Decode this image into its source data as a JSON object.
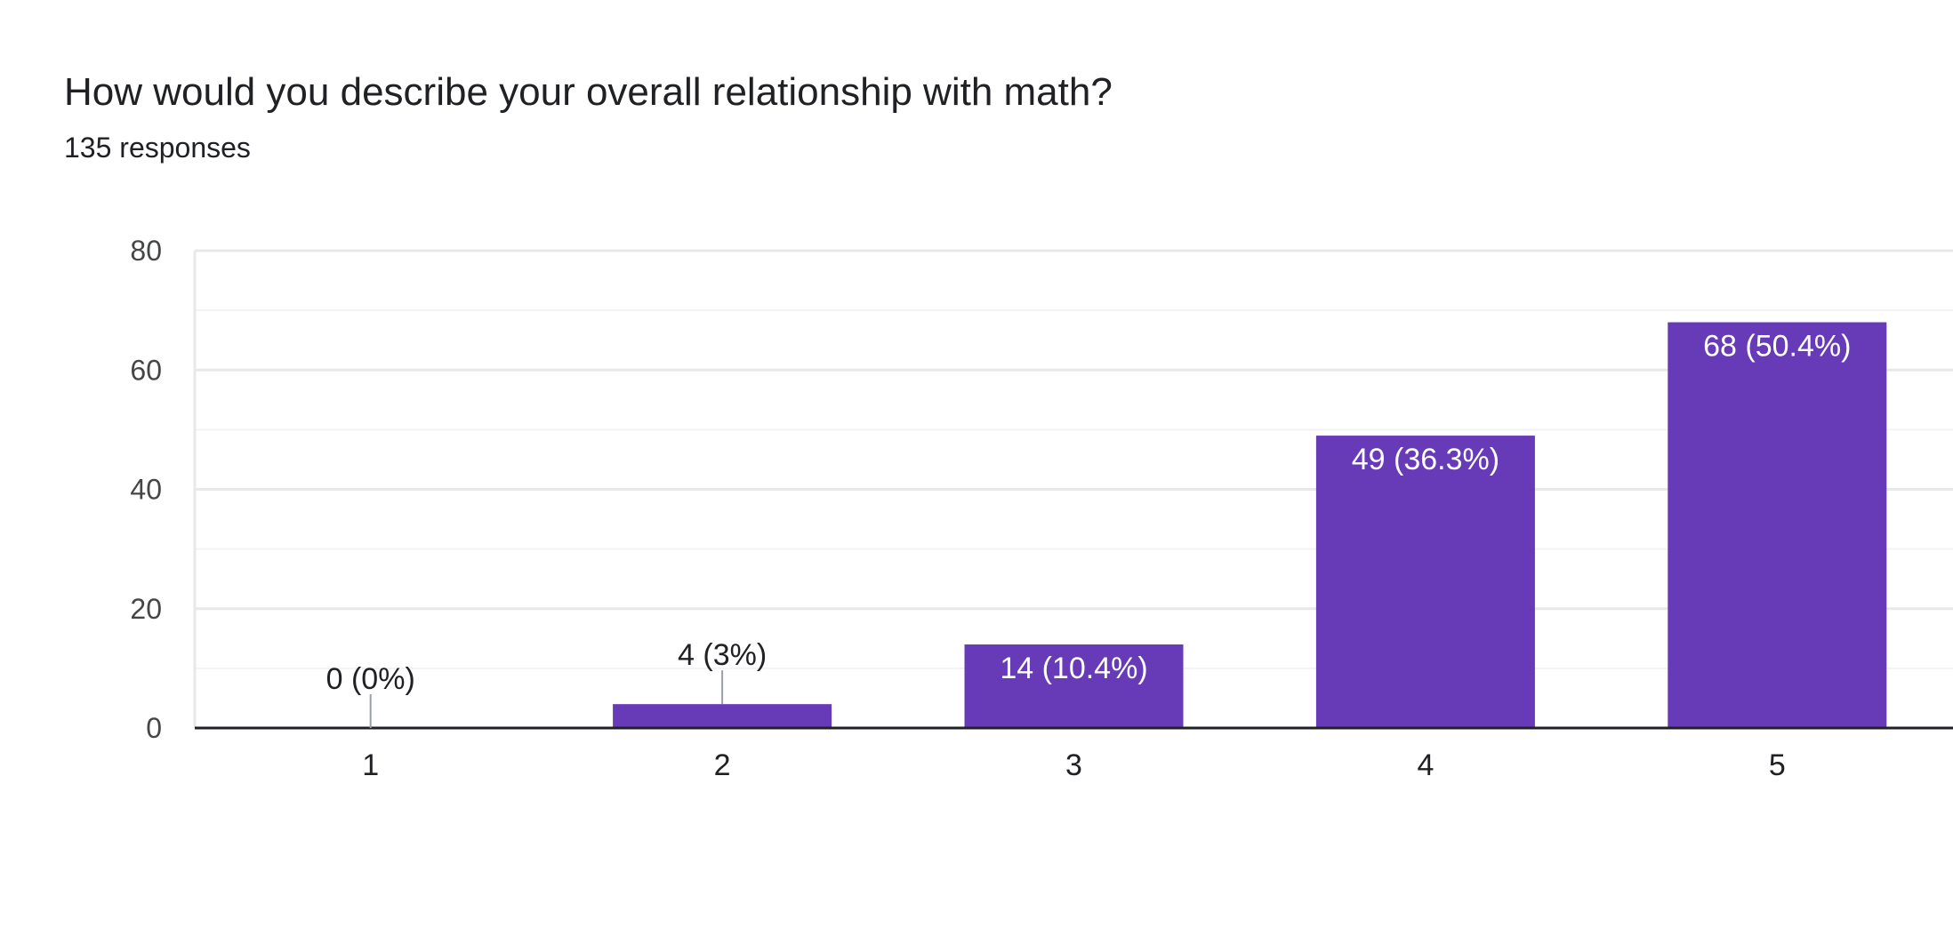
{
  "question": {
    "title": "How would you describe your overall relationship with math?",
    "responses": "135 responses"
  },
  "colors": {
    "bar": "#673ab7",
    "grid": "#e8e8e8",
    "grid_minor": "#f3f3f3",
    "axis": "#202124",
    "leader": "#9aa0a6"
  },
  "chart_data": {
    "type": "bar",
    "categories": [
      "1",
      "2",
      "3",
      "4",
      "5"
    ],
    "values": [
      0,
      4,
      14,
      49,
      68
    ],
    "data_labels": [
      "0 (0%)",
      "4 (3%)",
      "14 (10.4%)",
      "49 (36.3%)",
      "68 (50.4%)"
    ],
    "title": "How would you describe your overall relationship with math?",
    "xlabel": "",
    "ylabel": "",
    "ylim": [
      0,
      80
    ],
    "yticks": [
      0,
      20,
      40,
      60,
      80
    ],
    "grid": true,
    "legend": "none"
  }
}
